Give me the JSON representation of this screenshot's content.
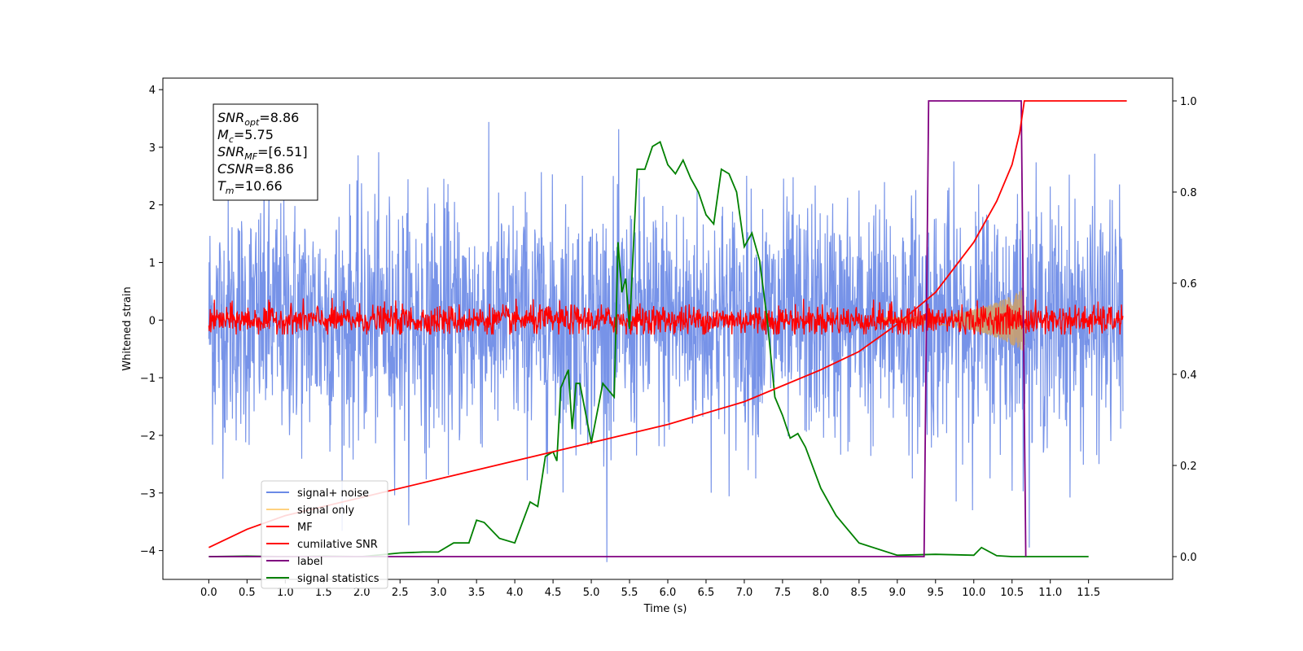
{
  "chart_data": {
    "type": "line",
    "xlabel": "Time (s)",
    "ylabel": "Whitened strain",
    "xlim": [
      -0.6,
      12.6
    ],
    "ylim": [
      -4.5,
      4.2
    ],
    "ylim_right": [
      -0.05,
      1.05
    ],
    "x_ticks": [
      0.0,
      0.5,
      1.0,
      1.5,
      2.0,
      2.5,
      3.0,
      3.5,
      4.0,
      4.5,
      5.0,
      5.5,
      6.0,
      6.5,
      7.0,
      7.5,
      8.0,
      8.5,
      9.0,
      9.5,
      10.0,
      10.5,
      11.0,
      11.5
    ],
    "x_tick_labels": [
      "0.0",
      "0.5",
      "1.0",
      "1.5",
      "2.0",
      "2.5",
      "3.0",
      "3.5",
      "4.0",
      "4.5",
      "5.0",
      "5.5",
      "6.0",
      "6.5",
      "7.0",
      "7.5",
      "8.0",
      "8.5",
      "9.0",
      "9.5",
      "10.0",
      "10.5",
      "11.0",
      "11.5"
    ],
    "y_ticks": [
      -4,
      -3,
      -2,
      -1,
      0,
      1,
      2,
      3,
      4
    ],
    "y_tick_labels": [
      "−4",
      "−3",
      "−2",
      "−1",
      "0",
      "1",
      "2",
      "3",
      "4"
    ],
    "y_right_ticks": [
      0.0,
      0.2,
      0.4,
      0.6,
      0.8,
      1.0
    ],
    "y_right_tick_labels": [
      "0.0",
      "0.2",
      "0.4",
      "0.6",
      "0.8",
      "1.0"
    ],
    "grid": false,
    "legend_position": "lower-left",
    "legend": [
      {
        "name": "signal+ noise",
        "color": "#6b8ae6"
      },
      {
        "name": "signal only",
        "color": "#ffd27f"
      },
      {
        "name": "MF",
        "color": "#ff0000"
      },
      {
        "name": "cumilative SNR",
        "color": "#ff0000"
      },
      {
        "name": "label",
        "color": "#800080"
      },
      {
        "name": "signal statistics",
        "color": "#008000"
      }
    ],
    "info_box": [
      {
        "main": "SNR",
        "sub": "opt",
        "value": "=8.86"
      },
      {
        "main": "M",
        "sub": "c",
        "value": "=5.75"
      },
      {
        "main": "SNR",
        "sub": "MF",
        "value": "=[6.51]"
      },
      {
        "main": "CSNR",
        "sub": "",
        "value": "=8.86"
      },
      {
        "main": "T",
        "sub": "m",
        "value": "=10.66"
      }
    ],
    "series": [
      {
        "name": "signal statistics",
        "axis": "right",
        "color": "#008000",
        "x": [
          0.0,
          0.5,
          1.0,
          1.5,
          2.0,
          2.5,
          2.8,
          3.0,
          3.2,
          3.4,
          3.5,
          3.6,
          3.8,
          4.0,
          4.2,
          4.3,
          4.4,
          4.5,
          4.55,
          4.6,
          4.7,
          4.75,
          4.8,
          4.85,
          5.0,
          5.15,
          5.3,
          5.35,
          5.4,
          5.45,
          5.5,
          5.6,
          5.7,
          5.8,
          5.9,
          6.0,
          6.1,
          6.2,
          6.3,
          6.4,
          6.5,
          6.6,
          6.7,
          6.8,
          6.9,
          7.0,
          7.1,
          7.2,
          7.3,
          7.4,
          7.5,
          7.6,
          7.7,
          7.8,
          8.0,
          8.2,
          8.5,
          9.0,
          9.5,
          10.0,
          10.1,
          10.3,
          10.5,
          11.0,
          11.5
        ],
        "y": [
          0.0,
          0.001,
          0.0,
          0.001,
          0.0,
          0.008,
          0.01,
          0.01,
          0.03,
          0.03,
          0.08,
          0.075,
          0.04,
          0.03,
          0.12,
          0.11,
          0.22,
          0.23,
          0.21,
          0.37,
          0.41,
          0.28,
          0.38,
          0.38,
          0.25,
          0.38,
          0.35,
          0.69,
          0.58,
          0.61,
          0.5,
          0.85,
          0.85,
          0.9,
          0.91,
          0.86,
          0.84,
          0.87,
          0.83,
          0.8,
          0.75,
          0.73,
          0.85,
          0.84,
          0.8,
          0.68,
          0.71,
          0.65,
          0.52,
          0.35,
          0.31,
          0.26,
          0.27,
          0.24,
          0.15,
          0.09,
          0.03,
          0.003,
          0.005,
          0.003,
          0.02,
          0.002,
          0.0,
          0.0,
          0.0
        ]
      },
      {
        "name": "label",
        "axis": "right",
        "color": "#800080",
        "x": [
          0.0,
          9.35,
          9.41,
          10.62,
          10.68
        ],
        "y": [
          0.0,
          0.0,
          1.0,
          1.0,
          0.0
        ]
      },
      {
        "name": "cumilative SNR",
        "axis": "right",
        "color": "#ff0000",
        "x": [
          0.0,
          0.5,
          1.0,
          2.0,
          3.0,
          4.0,
          5.0,
          6.0,
          7.0,
          7.5,
          8.0,
          8.5,
          9.0,
          9.5,
          10.0,
          10.3,
          10.5,
          10.6,
          10.66,
          12.0
        ],
        "y": [
          0.02,
          0.06,
          0.09,
          0.13,
          0.17,
          0.21,
          0.25,
          0.29,
          0.34,
          0.375,
          0.41,
          0.45,
          0.51,
          0.58,
          0.69,
          0.78,
          0.86,
          0.93,
          1.0,
          1.0
        ]
      }
    ]
  }
}
